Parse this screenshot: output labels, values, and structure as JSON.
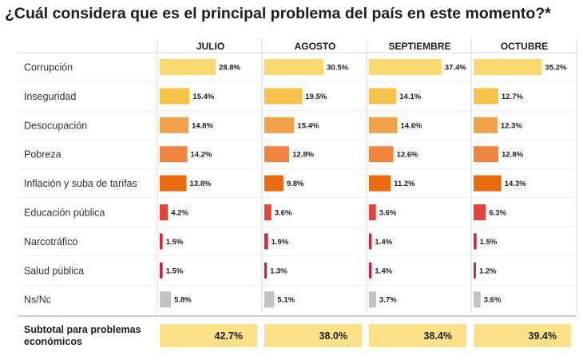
{
  "title": "¿Cuál considera que es el principal problema del país en este momento?*",
  "colors": {
    "Corrupción": "#fbd971",
    "Inseguridad": "#f7c24c",
    "Desocupación": "#f0a14a",
    "Pobreza": "#ee8642",
    "Inflación y suba de tarifas": "#ea6a0f",
    "Educación pública": "#e2453e",
    "Narcotráfico": "#d6263a",
    "Salud pública": "#c9233e",
    "Ns/Nc": "#c3c3c3",
    "subtotal_fill": "#fce08a",
    "divider": "#d8d8d8",
    "row_divider": "#e6e6e6"
  },
  "chart_data": {
    "type": "bar",
    "title": "¿Cuál considera que es el principal problema del país en este momento?*",
    "orientation": "horizontal",
    "categories": [
      "Corrupción",
      "Inseguridad",
      "Desocupación",
      "Pobreza",
      "Inflación y suba de tarifas",
      "Educación pública",
      "Narcotráfico",
      "Salud pública",
      "Ns/Nc"
    ],
    "series": [
      {
        "name": "JULIO",
        "values": [
          28.8,
          15.4,
          14.8,
          14.2,
          13.8,
          4.2,
          1.5,
          1.5,
          5.8
        ],
        "labels": [
          "28.8%",
          "15.4%",
          "14.8%",
          "14.2%",
          "13.8%",
          "4.2%",
          "1.5%",
          "1.5%",
          "5.8%"
        ]
      },
      {
        "name": "AGOSTO",
        "values": [
          30.5,
          19.5,
          15.4,
          12.8,
          9.8,
          3.6,
          1.9,
          1.3,
          5.1
        ],
        "labels": [
          "30.5%",
          "19.5%",
          "15.4%",
          "12.8%",
          "9.8%",
          "3.6%",
          "1.9%",
          "1.3%",
          "5.1%"
        ]
      },
      {
        "name": "SEPTIEMBRE",
        "values": [
          37.4,
          14.1,
          14.6,
          12.6,
          11.2,
          3.6,
          1.4,
          1.4,
          3.7
        ],
        "labels": [
          "37.4%",
          "14.1%",
          "14.6%",
          "12.6%",
          "11.2%",
          "3.6%",
          "1.4%",
          "1.4%",
          "3.7%"
        ]
      },
      {
        "name": "OCTUBRE",
        "values": [
          35.2,
          12.7,
          12.3,
          12.8,
          14.3,
          6.3,
          1.5,
          1.2,
          3.6
        ],
        "labels": [
          "35.2%",
          "12.7%",
          "12.3%",
          "12.8%",
          "14.3%",
          "6.3%",
          "1.5%",
          "1.2%",
          "3.6%"
        ]
      }
    ],
    "subtotal": {
      "label_lines": [
        "Subtotal para problemas",
        "económicos"
      ],
      "values": [
        42.7,
        38.0,
        38.4,
        39.4
      ],
      "labels": [
        "42.7%",
        "38.0%",
        "38.4%",
        "39.4%"
      ]
    },
    "xlim": [
      0,
      40
    ],
    "grid": false,
    "legend": "none"
  }
}
